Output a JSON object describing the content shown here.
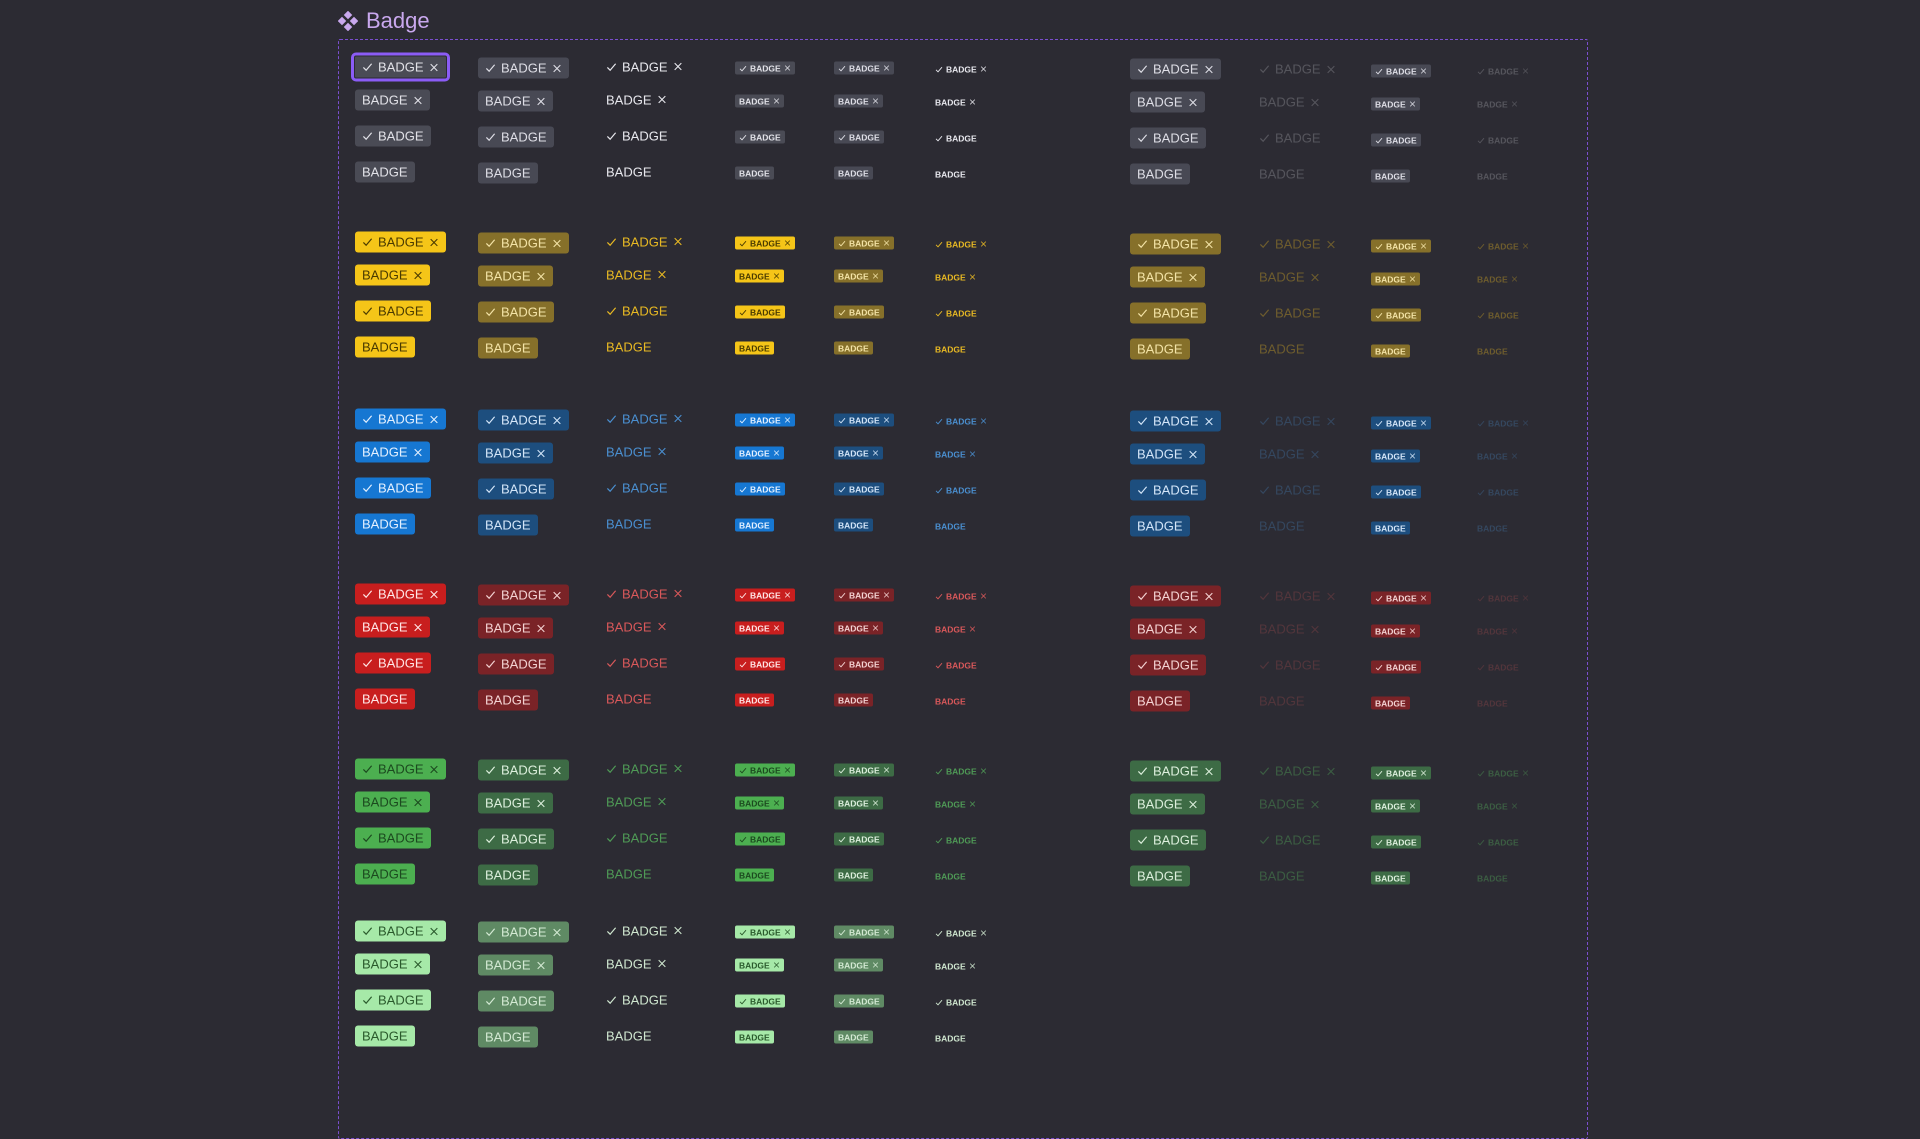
{
  "page": {
    "title": "Badge",
    "title_icon": "component-diamond-icon",
    "title_color": "#c9a8ee",
    "frame_color": "#7b4fd0",
    "focus_color": "#8b5cf6"
  },
  "badge_label": "BADGE",
  "variants": [
    {
      "check": true,
      "remove": true
    },
    {
      "check": false,
      "remove": true
    },
    {
      "check": true,
      "remove": false
    },
    {
      "check": false,
      "remove": false
    }
  ],
  "groups": [
    {
      "name": "neutral",
      "columns": 10,
      "solid_bg": "#4a4b55",
      "solid_fg": "#e2e2e8",
      "muted_bg": "#484954",
      "muted_fg": "#dedee6",
      "text_fg": "#e8e8ee",
      "faint_opacity": 0.22
    },
    {
      "name": "warning",
      "columns": 10,
      "solid_bg": "#f5c518",
      "solid_fg": "#4a3b00",
      "muted_bg": "#86702a",
      "muted_fg": "#f3e3a6",
      "text_fg": "#e8b923",
      "faint_opacity": 0.35
    },
    {
      "name": "info",
      "columns": 10,
      "solid_bg": "#1677d2",
      "solid_fg": "#e3f0ff",
      "muted_bg": "#1d4e7e",
      "muted_fg": "#d3e5f8",
      "text_fg": "#4a8fd0",
      "faint_opacity": 0.28
    },
    {
      "name": "danger",
      "columns": 10,
      "solid_bg": "#c81e1e",
      "solid_fg": "#ffe6e6",
      "muted_bg": "#7a2327",
      "muted_fg": "#f3d2d2",
      "text_fg": "#d9585a",
      "faint_opacity": 0.22
    },
    {
      "name": "success",
      "columns": 10,
      "solid_bg": "#4caf50",
      "solid_fg": "#1c4a1f",
      "muted_bg": "#3d6b45",
      "muted_fg": "#dcefdc",
      "text_fg": "#4f9a56",
      "faint_opacity": 0.45
    },
    {
      "name": "success-light",
      "columns": 6,
      "solid_bg": "#a6e9a8",
      "solid_fg": "#2a5a2c",
      "muted_bg": "#5f8a64",
      "muted_fg": "#d3e9d3",
      "text_fg": "#cfe6cf",
      "faint_opacity": 0.3
    }
  ]
}
